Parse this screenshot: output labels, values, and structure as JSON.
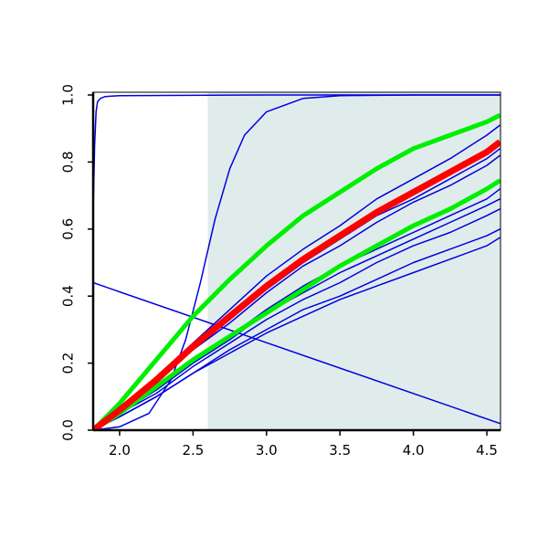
{
  "chart_data": {
    "type": "line",
    "xlim": [
      1.82,
      4.593
    ],
    "ylim": [
      0,
      1
    ],
    "xticks": [
      {
        "value": 2,
        "label": "2.0"
      },
      {
        "value": 2.5,
        "label": "2.5"
      },
      {
        "value": 3,
        "label": "3.0"
      },
      {
        "value": 3.5,
        "label": "3.5"
      },
      {
        "value": 4,
        "label": "4.0"
      },
      {
        "value": 4.5,
        "label": "4.5"
      }
    ],
    "yticks": [
      {
        "value": 0,
        "label": "0.0"
      },
      {
        "value": 0.2,
        "label": "0.2"
      },
      {
        "value": 0.4,
        "label": "0.4"
      },
      {
        "value": 0.6,
        "label": "0.6"
      },
      {
        "value": 0.8,
        "label": "0.8"
      },
      {
        "value": 1,
        "label": "1.0"
      }
    ],
    "highlight_x": [
      2.6,
      4.593
    ],
    "highlight_color": "#e0ecec",
    "x": [
      1.82,
      2.0,
      2.25,
      2.5,
      2.75,
      3.0,
      3.25,
      3.5,
      3.75,
      4.0,
      4.25,
      4.5,
      4.59
    ],
    "series": [
      {
        "color": "#0000dd",
        "width": 1.5,
        "x": [
          1.82,
          1.83,
          1.84,
          1.85,
          1.87,
          1.9,
          2.0,
          3.0,
          4.59
        ],
        "values": [
          0.65,
          0.85,
          0.95,
          0.98,
          0.99,
          0.995,
          0.998,
          1.0,
          1.0
        ]
      },
      {
        "color": "#0000dd",
        "width": 1.5,
        "x": [
          1.82,
          2.0,
          2.2,
          2.35,
          2.45,
          2.55,
          2.65,
          2.75,
          2.85,
          3.0,
          3.25,
          3.5,
          4.0,
          4.59
        ],
        "values": [
          0,
          0.01,
          0.05,
          0.15,
          0.27,
          0.44,
          0.63,
          0.78,
          0.88,
          0.95,
          0.99,
          0.998,
          1.0,
          1.0
        ]
      },
      {
        "color": "#0000dd",
        "width": 1.5,
        "x": [
          1.82,
          4.59
        ],
        "values": [
          0.44,
          0.02
        ]
      },
      {
        "color": "#0000dd",
        "width": 1.5,
        "values": [
          0,
          0.06,
          0.16,
          0.26,
          0.36,
          0.46,
          0.54,
          0.61,
          0.69,
          0.75,
          0.81,
          0.88,
          0.91
        ]
      },
      {
        "color": "#0000dd",
        "width": 1.5,
        "values": [
          0,
          0.06,
          0.15,
          0.24,
          0.33,
          0.42,
          0.5,
          0.57,
          0.64,
          0.69,
          0.75,
          0.81,
          0.84
        ]
      },
      {
        "color": "#0000dd",
        "width": 1.5,
        "values": [
          0,
          0.06,
          0.14,
          0.24,
          0.32,
          0.41,
          0.49,
          0.55,
          0.62,
          0.68,
          0.73,
          0.79,
          0.82
        ]
      },
      {
        "color": "#0000dd",
        "width": 1.5,
        "values": [
          0,
          0.05,
          0.13,
          0.21,
          0.28,
          0.36,
          0.43,
          0.49,
          0.54,
          0.59,
          0.64,
          0.69,
          0.72
        ]
      },
      {
        "color": "#0000dd",
        "width": 1.5,
        "values": [
          0,
          0.05,
          0.12,
          0.2,
          0.27,
          0.35,
          0.41,
          0.47,
          0.52,
          0.57,
          0.62,
          0.67,
          0.69
        ]
      },
      {
        "color": "#0000dd",
        "width": 1.5,
        "values": [
          0,
          0.05,
          0.11,
          0.19,
          0.26,
          0.33,
          0.39,
          0.44,
          0.5,
          0.55,
          0.59,
          0.64,
          0.66
        ]
      },
      {
        "color": "#0000dd",
        "width": 1.5,
        "values": [
          0,
          0.04,
          0.1,
          0.17,
          0.24,
          0.3,
          0.36,
          0.4,
          0.45,
          0.5,
          0.54,
          0.58,
          0.6
        ]
      },
      {
        "color": "#0000dd",
        "width": 1.5,
        "values": [
          0,
          0.04,
          0.1,
          0.17,
          0.23,
          0.29,
          0.34,
          0.39,
          0.43,
          0.47,
          0.51,
          0.55,
          0.575
        ]
      },
      {
        "color": "#00ee00",
        "width": 5,
        "values": [
          0,
          0.08,
          0.21,
          0.34,
          0.45,
          0.55,
          0.64,
          0.71,
          0.78,
          0.84,
          0.88,
          0.92,
          0.94
        ]
      },
      {
        "color": "#00ee00",
        "width": 5,
        "values": [
          0,
          0.05,
          0.13,
          0.21,
          0.28,
          0.35,
          0.42,
          0.49,
          0.55,
          0.61,
          0.66,
          0.72,
          0.745
        ]
      },
      {
        "color": "#ff0000",
        "width": 7,
        "values": [
          0,
          0.06,
          0.15,
          0.25,
          0.34,
          0.43,
          0.51,
          0.58,
          0.65,
          0.71,
          0.77,
          0.83,
          0.86
        ]
      }
    ]
  }
}
